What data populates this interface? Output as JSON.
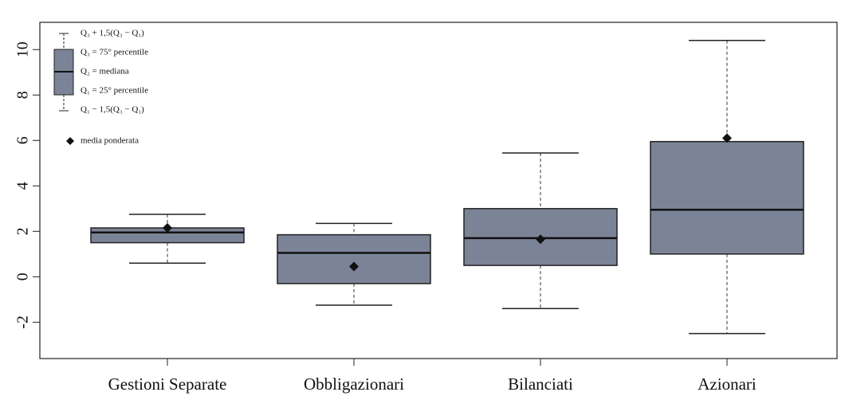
{
  "chart_data": {
    "type": "box",
    "categories": [
      "Gestioni Separate",
      "Obbligazionari",
      "Bilanciati",
      "Azionari"
    ],
    "whisker_high": [
      2.75,
      2.35,
      5.45,
      10.4
    ],
    "q3": [
      2.15,
      1.85,
      3.0,
      5.95
    ],
    "median": [
      1.95,
      1.05,
      1.7,
      2.95
    ],
    "q1": [
      1.5,
      -0.3,
      0.5,
      1.0
    ],
    "whisker_low": [
      0.6,
      -1.25,
      -1.4,
      -2.5
    ],
    "mean": [
      2.15,
      0.45,
      1.65,
      6.1
    ],
    "color": "#7b8397",
    "ylim": [
      -3.6,
      11.2
    ],
    "yticks": [
      -2,
      0,
      2,
      4,
      6,
      8,
      10
    ],
    "legend": {
      "whisker_high": "Q₃ + 1,5(Q₃ − Q₁)",
      "q3": "Q₃ = 75° percentile",
      "median": "Q₂ = mediana",
      "q1": "Q₁ = 25° percentile",
      "whisker_low": "Q₁ − 1,5(Q₃ − Q₁)",
      "mean": "media ponderata"
    }
  }
}
